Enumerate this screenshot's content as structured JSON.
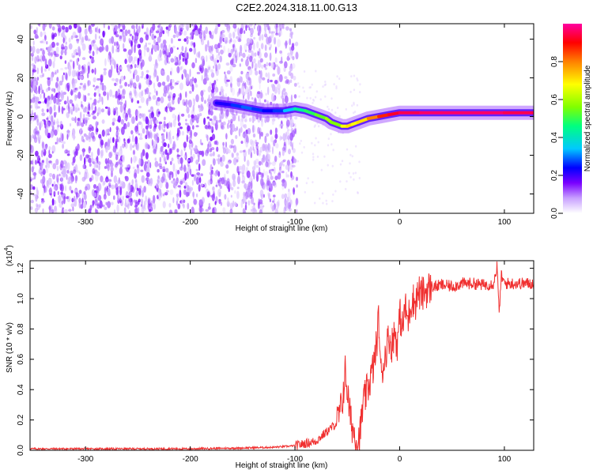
{
  "page": {
    "title": "C2E2.2024.318.11.00.G13"
  },
  "chart_data": [
    {
      "type": "heatmap",
      "title": "C2E2.2024.318.11.00.G13",
      "xlabel": "Height of straight line (km)",
      "ylabel": "Frequency (Hz)",
      "xlim": [
        -353,
        128
      ],
      "ylim": [
        -50,
        48
      ],
      "xticks": [
        -300,
        -200,
        -100,
        0,
        100
      ],
      "yticks": [
        -40,
        -20,
        0,
        20,
        40
      ],
      "colorbar": {
        "label": "Normalized spectral amplitude",
        "range": [
          0,
          1
        ],
        "ticks": [
          "0.0",
          "0.2",
          "0.4",
          "0.6",
          "0.8"
        ],
        "tick_values": [
          0.0,
          0.2,
          0.4,
          0.6,
          0.8
        ],
        "colormap": [
          "#ffffff",
          "#c8a0ff",
          "#7a00ff",
          "#0000ff",
          "#00c8ff",
          "#00ff80",
          "#80ff00",
          "#ffff00",
          "#ff8000",
          "#ff0000",
          "#ff00a0"
        ]
      },
      "ridge": {
        "x": [
          -175,
          -160,
          -150,
          -140,
          -130,
          -120,
          -110,
          -100,
          -90,
          -80,
          -70,
          -65,
          -60,
          -55,
          -50,
          -45,
          -40,
          -30,
          -20,
          -10,
          0,
          20,
          40,
          60,
          80,
          100,
          128
        ],
        "y": [
          7,
          6,
          5,
          4,
          3,
          3,
          3,
          4,
          3,
          1,
          -1,
          -3,
          -4,
          -5,
          -5,
          -4,
          -3,
          -1,
          0,
          1,
          2,
          2,
          2,
          2,
          2,
          2,
          2
        ],
        "amplitude": [
          0.25,
          0.3,
          0.35,
          0.35,
          0.3,
          0.3,
          0.35,
          0.45,
          0.5,
          0.55,
          0.6,
          0.65,
          0.55,
          0.65,
          0.75,
          0.7,
          0.7,
          0.75,
          0.85,
          0.9,
          0.95,
          0.95,
          0.98,
          0.95,
          0.98,
          0.95,
          0.95
        ]
      }
    },
    {
      "type": "line",
      "xlabel": "Height of straight line (km)",
      "ylabel": "SNR (10 * v/v)",
      "multiplier_label": "(x10",
      "multiplier_exp": "4",
      "multiplier_close": ")",
      "xlim": [
        -353,
        128
      ],
      "ylim": [
        0,
        1.25
      ],
      "xticks": [
        -300,
        -200,
        -100,
        0,
        100
      ],
      "yticks": [
        "0.0",
        "0.2",
        "0.4",
        "0.6",
        "0.8",
        "1.0",
        "1.2"
      ],
      "ytick_values": [
        0.0,
        0.2,
        0.4,
        0.6,
        0.8,
        1.0,
        1.2
      ],
      "color": "#f03030",
      "series": [
        {
          "x": [
            -353,
            -300,
            -250,
            -200,
            -150,
            -120,
            -100,
            -80,
            -70,
            -60,
            -55,
            -52,
            -50,
            -48,
            -45,
            -42,
            -40,
            -38,
            -35,
            -30,
            -25,
            -22,
            -20,
            -18,
            -15,
            -12,
            -10,
            -8,
            -5,
            -2,
            0,
            3,
            5,
            8,
            10,
            12,
            15,
            18,
            20,
            25,
            30,
            35,
            40,
            50,
            60,
            70,
            80,
            90,
            93,
            95,
            97,
            100,
            110,
            120,
            128
          ],
          "y": [
            0.01,
            0.01,
            0.01,
            0.01,
            0.015,
            0.02,
            0.03,
            0.06,
            0.12,
            0.18,
            0.3,
            0.52,
            0.4,
            0.25,
            0.15,
            0.08,
            0.06,
            0.1,
            0.3,
            0.42,
            0.55,
            0.7,
            0.88,
            0.5,
            0.58,
            0.7,
            0.75,
            0.68,
            0.78,
            0.7,
            0.9,
            0.8,
            0.95,
            0.85,
            0.95,
            1.0,
            0.97,
            1.05,
            1.02,
            1.05,
            1.08,
            1.08,
            1.09,
            1.08,
            1.1,
            1.1,
            1.09,
            1.1,
            1.22,
            0.9,
            1.15,
            1.1,
            1.1,
            1.1,
            1.1
          ]
        }
      ]
    }
  ]
}
